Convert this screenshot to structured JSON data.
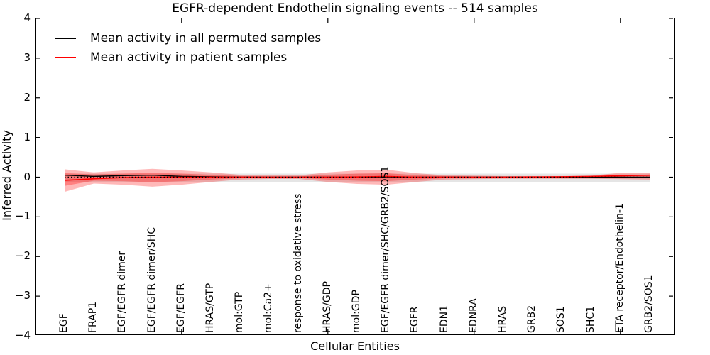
{
  "title": "EGFR-dependent Endothelin signaling events -- 514 samples",
  "axes": {
    "x_label": "Cellular Entities",
    "y_label": "Inferred Activity",
    "y_tick_labels": [
      "4",
      "3",
      "2",
      "1",
      "0",
      "−1",
      "−2",
      "−3",
      "−4"
    ],
    "y_tick_values": [
      4,
      3,
      2,
      1,
      0,
      -1,
      -2,
      -3,
      -4
    ]
  },
  "legend": {
    "entries": [
      {
        "label": "Mean activity in all permuted samples",
        "color": "#000000"
      },
      {
        "label": "Mean activity in patient samples",
        "color": "#ff0000"
      }
    ]
  },
  "chart_data": {
    "type": "line",
    "title": "EGFR-dependent Endothelin signaling events -- 514 samples",
    "xlabel": "Cellular Entities",
    "ylabel": "Inferred Activity",
    "ylim": [
      -4,
      4
    ],
    "grid": false,
    "legend_position": "upper-left",
    "categories": [
      "EGF",
      "FRAP1",
      "EGF/EGFR dimer",
      "EGF/EGFR dimer/SHC",
      "EGF/EGFR",
      "HRAS/GTP",
      "mol:GTP",
      "mol:Ca2+",
      "response to oxidative stress",
      "HRAS/GDP",
      "mol:GDP",
      "EGF/EGFR dimer/SHC/GRB2/SOS1",
      "EGFR",
      "EDN1",
      "EDNRA",
      "HRAS",
      "GRB2",
      "SOS1",
      "SHC1",
      "ETA receptor/Endothelin-1",
      "GRB2/SOS1"
    ],
    "x_major_tick_positions": [
      5,
      10,
      15,
      20
    ],
    "series": [
      {
        "name": "Mean activity in all permuted samples",
        "color": "#000000",
        "style": "solid",
        "width": 1.4,
        "values": [
          0.05,
          0.02,
          0.04,
          0.05,
          0.02,
          0.01,
          0.0,
          0.0,
          0.0,
          0.0,
          0.0,
          0.005,
          0.0,
          0.0,
          0.0,
          0.0,
          0.0,
          0.0,
          0.0,
          0.0,
          0.0
        ]
      },
      {
        "name": "Mean activity in patient samples",
        "color": "#ff0000",
        "style": "solid",
        "width": 1.6,
        "values": [
          -0.08,
          -0.04,
          -0.01,
          0.0,
          0.0,
          0.0,
          0.0,
          0.0,
          0.0,
          0.0,
          0.005,
          0.02,
          0.0,
          0.0,
          0.0,
          0.0,
          0.005,
          0.01,
          0.02,
          0.035,
          0.05
        ]
      },
      {
        "name": "zero-reference",
        "color": "#000000",
        "style": "dotted",
        "width": 1.5,
        "values": [
          0,
          0,
          0,
          0,
          0,
          0,
          0,
          0,
          0,
          0,
          0,
          0,
          0,
          0,
          0,
          0,
          0,
          0,
          0,
          0,
          0
        ]
      }
    ],
    "bands": [
      {
        "name": "permuted-range",
        "color": "#000000",
        "opacity": 0.1,
        "upper": [
          0.09,
          0.09,
          0.09,
          0.09,
          0.09,
          0.09,
          0.09,
          0.09,
          0.09,
          0.09,
          0.09,
          0.09,
          0.09,
          0.09,
          0.09,
          0.09,
          0.09,
          0.09,
          0.09,
          0.09,
          0.09
        ],
        "lower": [
          -0.13,
          -0.13,
          -0.13,
          -0.13,
          -0.13,
          -0.13,
          -0.13,
          -0.13,
          -0.13,
          -0.13,
          -0.13,
          -0.13,
          -0.13,
          -0.13,
          -0.13,
          -0.13,
          -0.13,
          -0.13,
          -0.13,
          -0.13,
          -0.13
        ]
      },
      {
        "name": "patient-outer",
        "color": "#ff0000",
        "opacity": 0.28,
        "upper": [
          0.2,
          0.12,
          0.17,
          0.21,
          0.17,
          0.12,
          0.06,
          0.045,
          0.045,
          0.12,
          0.17,
          0.19,
          0.1,
          0.05,
          0.04,
          0.03,
          0.03,
          0.03,
          0.04,
          0.11,
          0.1
        ],
        "lower": [
          -0.37,
          -0.16,
          -0.19,
          -0.24,
          -0.19,
          -0.12,
          -0.06,
          -0.045,
          -0.045,
          -0.12,
          -0.17,
          -0.19,
          -0.12,
          -0.06,
          -0.05,
          -0.04,
          -0.04,
          -0.04,
          -0.04,
          -0.05,
          -0.06
        ]
      },
      {
        "name": "patient-inner",
        "color": "#ff0000",
        "opacity": 0.3,
        "upper": [
          0.1,
          0.07,
          0.09,
          0.11,
          0.09,
          0.06,
          0.03,
          0.02,
          0.02,
          0.06,
          0.09,
          0.1,
          0.05,
          0.03,
          0.02,
          0.02,
          0.02,
          0.02,
          0.02,
          0.06,
          0.06
        ],
        "lower": [
          -0.22,
          -0.09,
          -0.1,
          -0.13,
          -0.1,
          -0.06,
          -0.03,
          -0.02,
          -0.02,
          -0.06,
          -0.09,
          -0.1,
          -0.06,
          -0.03,
          -0.03,
          -0.02,
          -0.02,
          -0.02,
          -0.02,
          -0.03,
          -0.03
        ]
      }
    ]
  }
}
